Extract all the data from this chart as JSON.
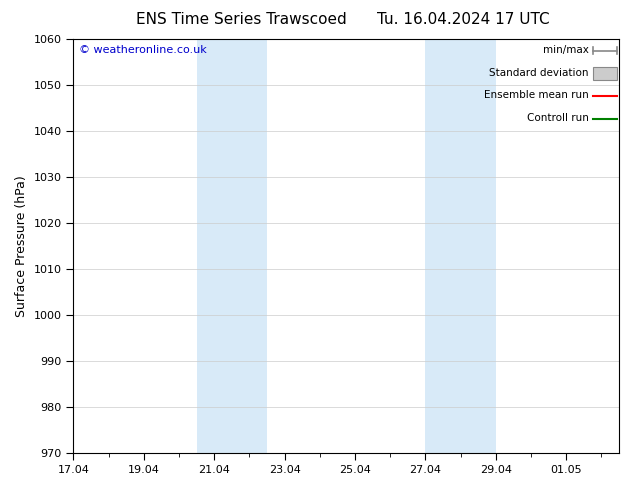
{
  "title": "ENS Time Series Trawscoed",
  "title_date": "Tu. 16.04.2024 17 UTC",
  "ylabel": "Surface Pressure (hPa)",
  "ylim": [
    970,
    1060
  ],
  "yticks": [
    970,
    980,
    990,
    1000,
    1010,
    1020,
    1030,
    1040,
    1050,
    1060
  ],
  "xtick_labels": [
    "17.04",
    "19.04",
    "21.04",
    "23.04",
    "25.04",
    "27.04",
    "29.04",
    "01.05"
  ],
  "xtick_days": [
    0,
    2,
    4,
    6,
    8,
    10,
    12,
    14
  ],
  "xlim": [
    0,
    15.5
  ],
  "weekend_bands": [
    {
      "start": 3.5,
      "end": 5.5
    },
    {
      "start": 10.0,
      "end": 12.0
    }
  ],
  "weekend_color": "#d8eaf8",
  "grid_color": "#cccccc",
  "copyright_text": "© weatheronline.co.uk",
  "copyright_color": "#0000cc",
  "legend_items": [
    {
      "label": "min/max",
      "color": "#888888",
      "style": "minmax"
    },
    {
      "label": "Standard deviation",
      "color": "#cccccc",
      "style": "fill"
    },
    {
      "label": "Ensemble mean run",
      "color": "#ff0000",
      "style": "line"
    },
    {
      "label": "Controll run",
      "color": "#008000",
      "style": "line"
    }
  ],
  "background_color": "#ffffff",
  "title_fontsize": 11,
  "ylabel_fontsize": 9,
  "tick_fontsize": 8,
  "legend_fontsize": 7.5,
  "copyright_fontsize": 8
}
